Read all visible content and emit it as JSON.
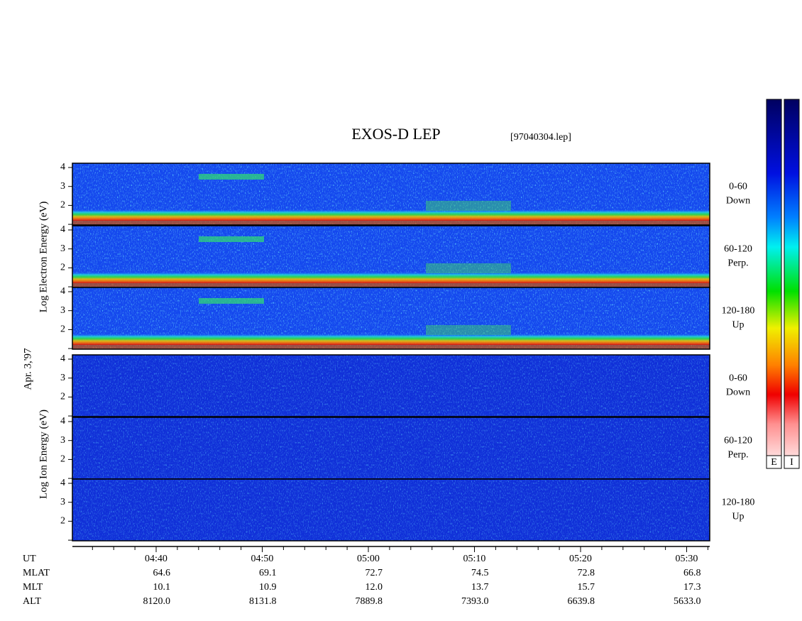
{
  "title": "EXOS-D LEP",
  "file": "[97040304.lep]",
  "date_label": "Apr. 3,'97",
  "electron_axis_label": "Log  Electron  Energy (eV)",
  "ion_axis_label": "Log  Ion  Energy (eV)",
  "yticks": [
    2,
    3,
    4
  ],
  "panels": {
    "electron": [
      {
        "range": "0-60",
        "dir": "Down"
      },
      {
        "range": "60-120",
        "dir": "Perp."
      },
      {
        "range": "120-180",
        "dir": "Up"
      }
    ],
    "ion": [
      {
        "range": "0-60",
        "dir": "Down"
      },
      {
        "range": "60-120",
        "dir": "Perp."
      },
      {
        "range": "120-180",
        "dir": "Up"
      }
    ]
  },
  "time_table": {
    "rows": [
      {
        "label": "UT",
        "values": [
          "04:40",
          "04:50",
          "05:00",
          "05:10",
          "05:20",
          "05:30"
        ]
      },
      {
        "label": "MLAT",
        "values": [
          "64.6",
          "69.1",
          "72.7",
          "74.5",
          "72.8",
          "66.8"
        ]
      },
      {
        "label": "MLT",
        "values": [
          "10.1",
          "10.9",
          "12.0",
          "13.7",
          "15.7",
          "17.3"
        ]
      },
      {
        "label": "ALT",
        "values": [
          "8120.0",
          "8131.8",
          "7889.8",
          "7393.0",
          "6639.8",
          "5633.0"
        ]
      }
    ]
  },
  "colorbar_labels": [
    "E",
    "I"
  ]
}
